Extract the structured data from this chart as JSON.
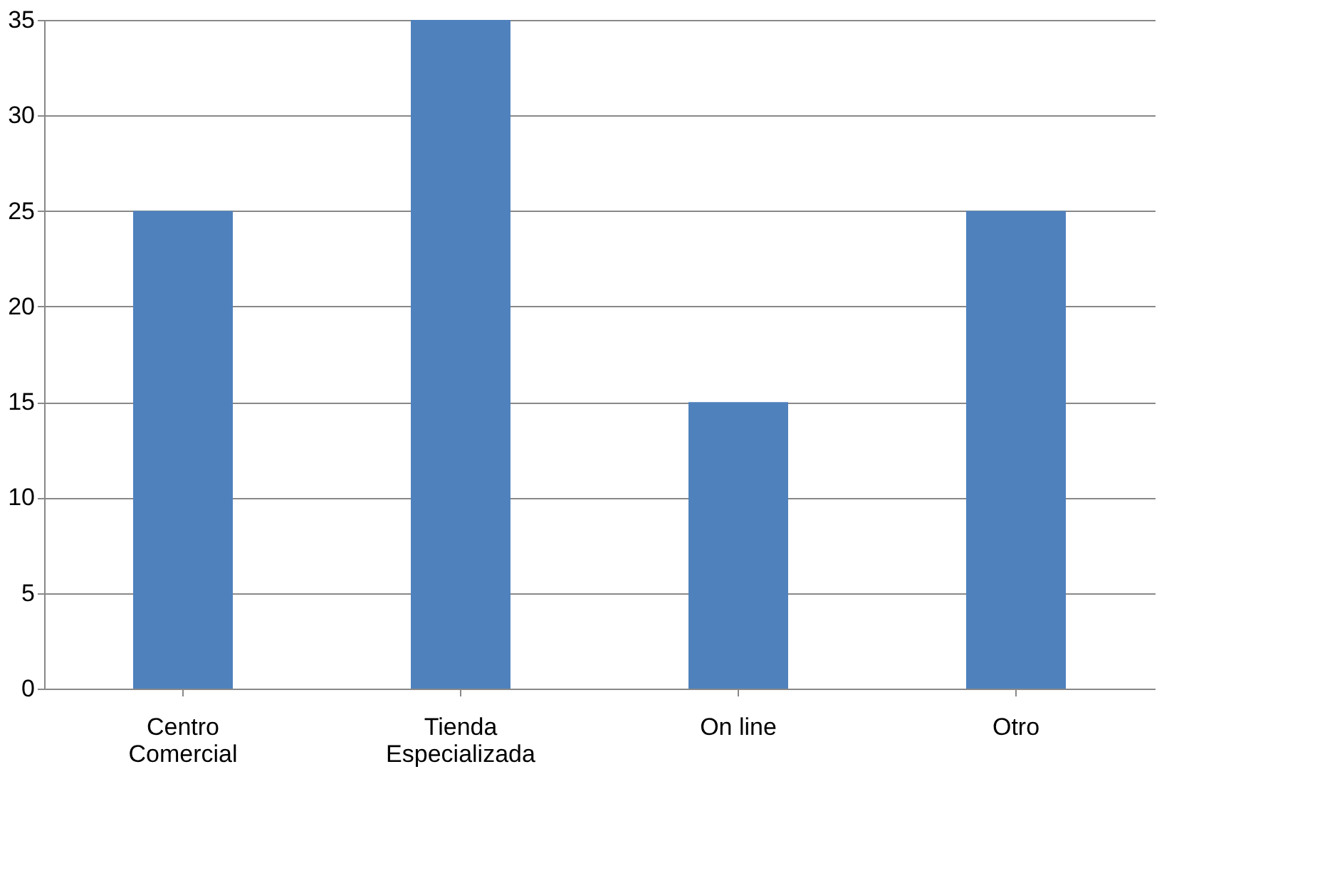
{
  "chart_data": {
    "type": "bar",
    "categories": [
      "Centro Comercial",
      "Tienda Especializada",
      "On line",
      "Otro"
    ],
    "values": [
      25,
      35,
      15,
      25
    ],
    "color": "#4f81bd",
    "ylim": [
      0,
      35
    ],
    "yticks": [
      0,
      5,
      10,
      15,
      20,
      25,
      30,
      35
    ],
    "grid": "y"
  }
}
